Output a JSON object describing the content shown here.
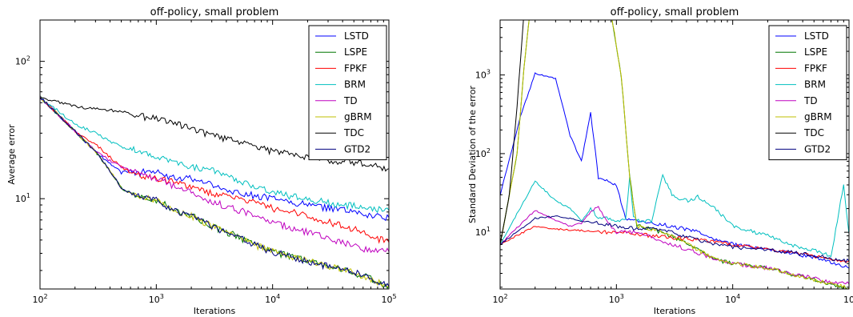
{
  "chart_data": [
    {
      "type": "line",
      "title": "off-policy, small problem",
      "xlabel": "Iterations",
      "ylabel": "Average error",
      "xscale": "log",
      "yscale": "log",
      "xlim": [
        100,
        100000
      ],
      "ylim": [
        2.2,
        200
      ],
      "xticks": [
        {
          "base": "10",
          "exp": "2"
        },
        {
          "base": "10",
          "exp": "3"
        },
        {
          "base": "10",
          "exp": "4"
        },
        {
          "base": "10",
          "exp": "5"
        }
      ],
      "yticks": [
        {
          "value": 10,
          "base": "10",
          "exp": "1"
        },
        {
          "value": 100,
          "base": "10",
          "exp": "2"
        }
      ],
      "legend_position": "top-right",
      "series": [
        {
          "name": "LSTD",
          "color": "#0000ff",
          "x": [
            100,
            200,
            300,
            400,
            500,
            600,
            700,
            800,
            1000,
            1500,
            2000,
            3000,
            5000,
            7000,
            10000,
            20000,
            30000,
            50000,
            70000,
            100000
          ],
          "y": [
            55,
            31,
            22,
            18,
            15.5,
            16,
            15,
            16,
            15.5,
            14,
            14,
            12.5,
            11,
            10.5,
            10,
            9,
            8.5,
            8,
            7.5,
            7.3
          ]
        },
        {
          "name": "LSPE",
          "color": "#007700",
          "x": [
            100,
            200,
            300,
            400,
            500,
            600,
            700,
            800,
            1000,
            1500,
            2000,
            3000,
            5000,
            7000,
            10000,
            20000,
            30000,
            50000,
            70000,
            100000
          ],
          "y": [
            55,
            31,
            22,
            16,
            12,
            11,
            10.5,
            10,
            9.8,
            8,
            7.5,
            6.3,
            5.3,
            4.6,
            4.1,
            3.5,
            3.2,
            2.9,
            2.6,
            2.3
          ]
        },
        {
          "name": "FPKF",
          "color": "#ff0000",
          "x": [
            100,
            200,
            300,
            400,
            500,
            600,
            700,
            800,
            1000,
            1500,
            2000,
            3000,
            5000,
            7000,
            10000,
            20000,
            30000,
            50000,
            70000,
            100000
          ],
          "y": [
            55,
            31,
            25,
            20,
            17,
            15.5,
            15,
            14.5,
            14,
            13,
            12,
            11,
            10,
            9.3,
            8.5,
            7.5,
            6.8,
            6,
            5.3,
            4.8
          ]
        },
        {
          "name": "BRM",
          "color": "#00bfbf",
          "x": [
            100,
            200,
            300,
            400,
            500,
            600,
            700,
            800,
            1000,
            1500,
            2000,
            3000,
            5000,
            7000,
            10000,
            20000,
            30000,
            50000,
            70000,
            100000
          ],
          "y": [
            55,
            35,
            30,
            26,
            24,
            23,
            22,
            21,
            20,
            18,
            17,
            16,
            13.5,
            12.5,
            11,
            10,
            9.3,
            8.8,
            8.3,
            8.2
          ]
        },
        {
          "name": "TD",
          "color": "#bf00bf",
          "x": [
            100,
            200,
            300,
            400,
            500,
            600,
            700,
            800,
            1000,
            1500,
            2000,
            3000,
            5000,
            7000,
            10000,
            20000,
            30000,
            50000,
            70000,
            100000
          ],
          "y": [
            55,
            31,
            22,
            19,
            17,
            16,
            15.5,
            15,
            14,
            12,
            11,
            9.5,
            8.3,
            7.5,
            6.7,
            5.7,
            5.1,
            4.5,
            4.2,
            4.1
          ]
        },
        {
          "name": "gBRM",
          "color": "#bfbf00",
          "x": [
            100,
            200,
            300,
            400,
            500,
            600,
            700,
            800,
            1000,
            1500,
            2000,
            3000,
            5000,
            7000,
            10000,
            20000,
            30000,
            50000,
            70000,
            100000
          ],
          "y": [
            55,
            31,
            22,
            16,
            12,
            11,
            10.5,
            10,
            9.8,
            8,
            7.5,
            6.3,
            5.3,
            4.6,
            4.1,
            3.5,
            3.2,
            2.9,
            2.6,
            2.3
          ]
        },
        {
          "name": "TDC",
          "color": "#000000",
          "x": [
            100,
            200,
            300,
            400,
            500,
            700,
            1000,
            1500,
            2000,
            3000,
            5000,
            7000,
            10000,
            20000,
            30000,
            50000,
            70000,
            100000
          ],
          "y": [
            55,
            47,
            45,
            44,
            43,
            40,
            38,
            35,
            32,
            29,
            26,
            24,
            22,
            20,
            19,
            18.5,
            17.5,
            16.5
          ]
        },
        {
          "name": "GTD2",
          "color": "#00007f",
          "x": [
            100,
            200,
            300,
            400,
            500,
            600,
            700,
            800,
            1000,
            1500,
            2000,
            3000,
            5000,
            7000,
            10000,
            20000,
            30000,
            50000,
            70000,
            100000
          ],
          "y": [
            55,
            31,
            22,
            16,
            12,
            11,
            10.5,
            10,
            9.8,
            8,
            7.5,
            6.3,
            5.3,
            4.6,
            4.1,
            3.5,
            3.2,
            2.9,
            2.6,
            2.3
          ]
        }
      ]
    },
    {
      "type": "line",
      "title": "off-policy, small problem",
      "xlabel": "Iterations",
      "ylabel": "Standard Deviation of the error",
      "xscale": "log",
      "yscale": "log",
      "xlim": [
        100,
        100000
      ],
      "ylim": [
        1.9,
        5000
      ],
      "xticks": [
        {
          "base": "10",
          "exp": "2"
        },
        {
          "base": "10",
          "exp": "3"
        },
        {
          "base": "10",
          "exp": "4"
        },
        {
          "base": "10",
          "exp": ""
        }
      ],
      "yticks": [
        {
          "value": 10,
          "base": "10",
          "exp": "1"
        },
        {
          "value": 100,
          "base": "10",
          "exp": "2"
        },
        {
          "value": 1000,
          "base": "10",
          "exp": "3"
        }
      ],
      "legend_position": "top-right",
      "series": [
        {
          "name": "LSTD",
          "color": "#0000ff",
          "x": [
            100,
            150,
            200,
            300,
            400,
            500,
            600,
            700,
            800,
            1000,
            1200,
            1500,
            2000,
            3000,
            5000,
            7000,
            10000,
            20000,
            30000,
            50000,
            70000,
            100000
          ],
          "y": [
            30,
            300,
            1050,
            900,
            170,
            80,
            330,
            50,
            45,
            40,
            15,
            14,
            13,
            12,
            10,
            8,
            7,
            6,
            5.5,
            4.8,
            4.2,
            3.5
          ]
        },
        {
          "name": "LSPE",
          "color": "#007700",
          "x": [
            100,
            140,
            160,
            180,
            200,
            400,
            700,
            900,
            1100,
            1300,
            1500,
            2000,
            3000,
            5000,
            7000,
            10000,
            20000,
            30000,
            50000,
            70000,
            100000
          ],
          "y": [
            7,
            100,
            1200,
            6000,
            6000,
            6000,
            6000,
            6000,
            1000,
            50,
            12,
            11,
            9,
            6,
            4.5,
            4,
            3.5,
            3,
            2.5,
            2.2,
            1.95
          ]
        },
        {
          "name": "FPKF",
          "color": "#ff0000",
          "x": [
            100,
            200,
            300,
            500,
            700,
            1000,
            1500,
            2000,
            3000,
            5000,
            7000,
            10000,
            20000,
            30000,
            50000,
            70000,
            100000
          ],
          "y": [
            7,
            12,
            11,
            10.5,
            10,
            10,
            9.5,
            9,
            8.5,
            8,
            7.5,
            7,
            6,
            5.5,
            5,
            4.6,
            4.3
          ]
        },
        {
          "name": "BRM",
          "color": "#00bfbf",
          "x": [
            100,
            200,
            300,
            400,
            500,
            600,
            700,
            800,
            1000,
            1200,
            1300,
            1400,
            1600,
            2000,
            2500,
            3000,
            4000,
            5000,
            7000,
            10000,
            20000,
            30000,
            50000,
            70000,
            90000,
            100000
          ],
          "y": [
            7,
            45,
            25,
            20,
            14,
            20,
            15,
            15,
            14,
            14,
            50,
            15,
            14,
            14,
            52,
            30,
            25,
            28,
            20,
            12,
            9,
            7,
            6,
            5,
            40,
            9.5
          ]
        },
        {
          "name": "TD",
          "color": "#bf00bf",
          "x": [
            100,
            200,
            300,
            400,
            500,
            600,
            700,
            800,
            1000,
            1500,
            2000,
            3000,
            5000,
            7000,
            10000,
            20000,
            30000,
            50000,
            70000,
            100000
          ],
          "y": [
            7,
            19,
            14,
            12,
            13,
            18,
            21,
            15,
            10,
            10,
            8.5,
            7,
            5.5,
            4.5,
            4,
            3.5,
            3,
            2.6,
            2.3,
            2.2
          ]
        },
        {
          "name": "gBRM",
          "color": "#bfbf00",
          "x": [
            100,
            140,
            160,
            180,
            200,
            400,
            700,
            900,
            1100,
            1300,
            1500,
            2000,
            3000,
            5000,
            7000,
            10000,
            20000,
            30000,
            50000,
            70000,
            100000
          ],
          "y": [
            7,
            100,
            1200,
            6000,
            6000,
            6000,
            6000,
            6000,
            1000,
            50,
            12,
            11,
            9,
            6,
            4.5,
            4,
            3.5,
            3,
            2.5,
            2.2,
            1.95
          ]
        },
        {
          "name": "TDC",
          "color": "#000000",
          "x": [
            100,
            120,
            140,
            160
          ],
          "y": [
            7,
            30,
            400,
            6000
          ]
        },
        {
          "name": "GTD2",
          "color": "#00007f",
          "x": [
            100,
            200,
            300,
            500,
            700,
            1000,
            1500,
            2000,
            3000,
            5000,
            7000,
            10000,
            20000,
            30000,
            50000,
            70000,
            100000
          ],
          "y": [
            7,
            15,
            16,
            14,
            13,
            12,
            11,
            11,
            10,
            8,
            7,
            6.5,
            6,
            5.6,
            5.1,
            4.6,
            4.3
          ]
        }
      ]
    }
  ]
}
